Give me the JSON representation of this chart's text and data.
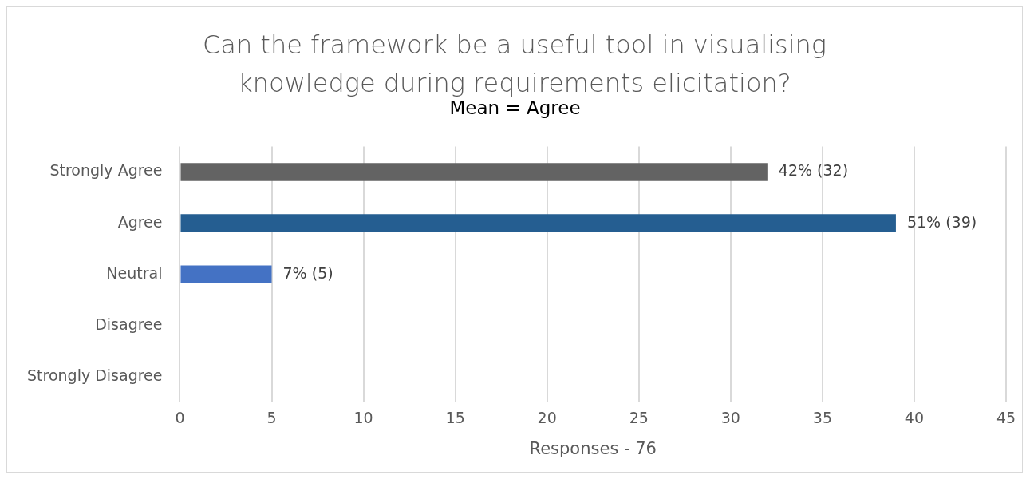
{
  "chart_data": {
    "type": "bar",
    "orientation": "horizontal",
    "title": "Can the framework be a useful tool in visualising knowledge during requirements elicitation?",
    "subtitle": "Mean = Agree",
    "xlabel": "Responses - 76",
    "categories": [
      "Strongly Agree",
      "Agree",
      "Neutral",
      "Disagree",
      "Strongly Disagree"
    ],
    "values": [
      32,
      39,
      5,
      0,
      0
    ],
    "colors": [
      "#636363",
      "#255e91",
      "#4472c4",
      "#4472c4",
      "#4472c4"
    ],
    "value_labels": [
      "42% (32)",
      "51% (39)",
      "7% (5)",
      null,
      null
    ],
    "xlim": [
      0,
      45
    ],
    "xticks": [
      0,
      5,
      10,
      15,
      20,
      25,
      30,
      35,
      40,
      45
    ],
    "grid": "x",
    "legend": false
  }
}
